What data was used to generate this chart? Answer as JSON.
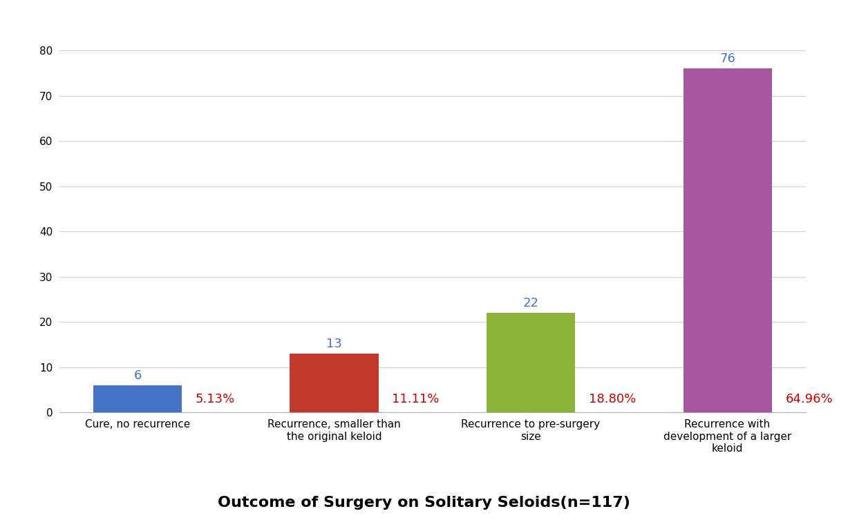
{
  "categories": [
    "Cure, no recurrence",
    "Recurrence, smaller than\nthe original keloid",
    "Recurrence to pre-surgery\nsize",
    "Recurrence with\ndevelopment of a larger\nkeloid"
  ],
  "values": [
    6,
    13,
    22,
    76
  ],
  "percentages": [
    "5.13%",
    "11.11%",
    "18.80%",
    "64.96%"
  ],
  "bar_colors": [
    "#4472C4",
    "#C0392B",
    "#8DB33A",
    "#A855A0"
  ],
  "count_label_color": "#4472C4",
  "pct_label_color": "#CC0000",
  "title": "Outcome of Surgery on Solitary Seloids(n=117)",
  "title_fontsize": 16,
  "title_fontweight": "bold",
  "ylim": [
    0,
    83
  ],
  "yticks": [
    0,
    10,
    20,
    30,
    40,
    50,
    60,
    70,
    80
  ],
  "ylabel": "",
  "xlabel": "",
  "bar_width": 0.45,
  "count_label_fontsize": 13,
  "pct_label_fontsize": 13,
  "tick_label_fontsize": 11,
  "background_color": "#FFFFFF",
  "grid_color": "#CCCCCC"
}
